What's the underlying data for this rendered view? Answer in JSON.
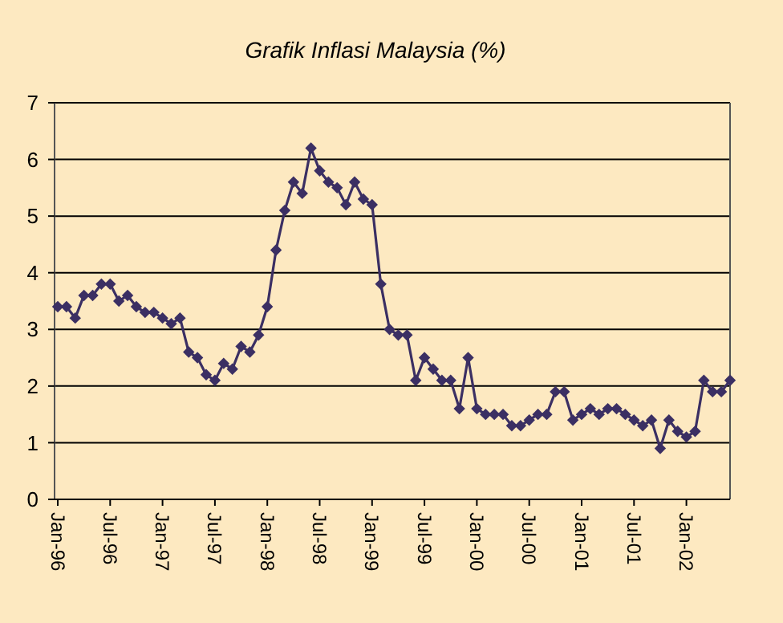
{
  "chart_data": {
    "type": "line",
    "title": "Grafik  Inflasi Malaysia (%)",
    "categories": [
      "Jan-96",
      null,
      null,
      null,
      null,
      null,
      "Jul-96",
      null,
      null,
      null,
      null,
      null,
      "Jan-97",
      null,
      null,
      null,
      null,
      null,
      "Jul-97",
      null,
      null,
      null,
      null,
      null,
      "Jan-98",
      null,
      null,
      null,
      null,
      null,
      "Jul-98",
      null,
      null,
      null,
      null,
      null,
      "Jan-99",
      null,
      null,
      null,
      null,
      null,
      "Jul-99",
      null,
      null,
      null,
      null,
      null,
      "Jan-00",
      null,
      null,
      null,
      null,
      null,
      "Jul-00",
      null,
      null,
      null,
      null,
      null,
      "Jan-01",
      null,
      null,
      null,
      null,
      null,
      "Jul-01",
      null,
      null,
      null,
      null,
      null,
      "Jan-02",
      null,
      null,
      null,
      null,
      null
    ],
    "series": [
      {
        "color": "#3b2f63",
        "values": [
          3.4,
          3.4,
          3.2,
          3.6,
          3.6,
          3.8,
          3.8,
          3.5,
          3.6,
          3.4,
          3.3,
          3.3,
          3.2,
          3.1,
          3.2,
          2.6,
          2.5,
          2.2,
          2.1,
          2.4,
          2.3,
          2.7,
          2.6,
          2.9,
          3.4,
          4.4,
          5.1,
          5.6,
          5.4,
          6.2,
          5.8,
          5.6,
          5.5,
          5.2,
          5.6,
          5.3,
          5.2,
          3.8,
          3.0,
          2.9,
          2.9,
          2.1,
          2.5,
          2.3,
          2.1,
          2.1,
          1.6,
          2.5,
          1.6,
          1.5,
          1.5,
          1.5,
          1.3,
          1.3,
          1.4,
          1.5,
          1.5,
          1.9,
          1.9,
          1.4,
          1.5,
          1.6,
          1.5,
          1.6,
          1.6,
          1.5,
          1.4,
          1.3,
          1.4,
          0.9,
          1.4,
          1.2,
          1.1,
          1.2,
          2.1,
          1.9,
          1.9,
          2.1
        ]
      }
    ],
    "ylim": [
      0,
      7
    ],
    "yticks": [
      0,
      1,
      2,
      3,
      4,
      5,
      6,
      7
    ],
    "grid": "y",
    "marker": "diamond",
    "line_style": "solid"
  }
}
